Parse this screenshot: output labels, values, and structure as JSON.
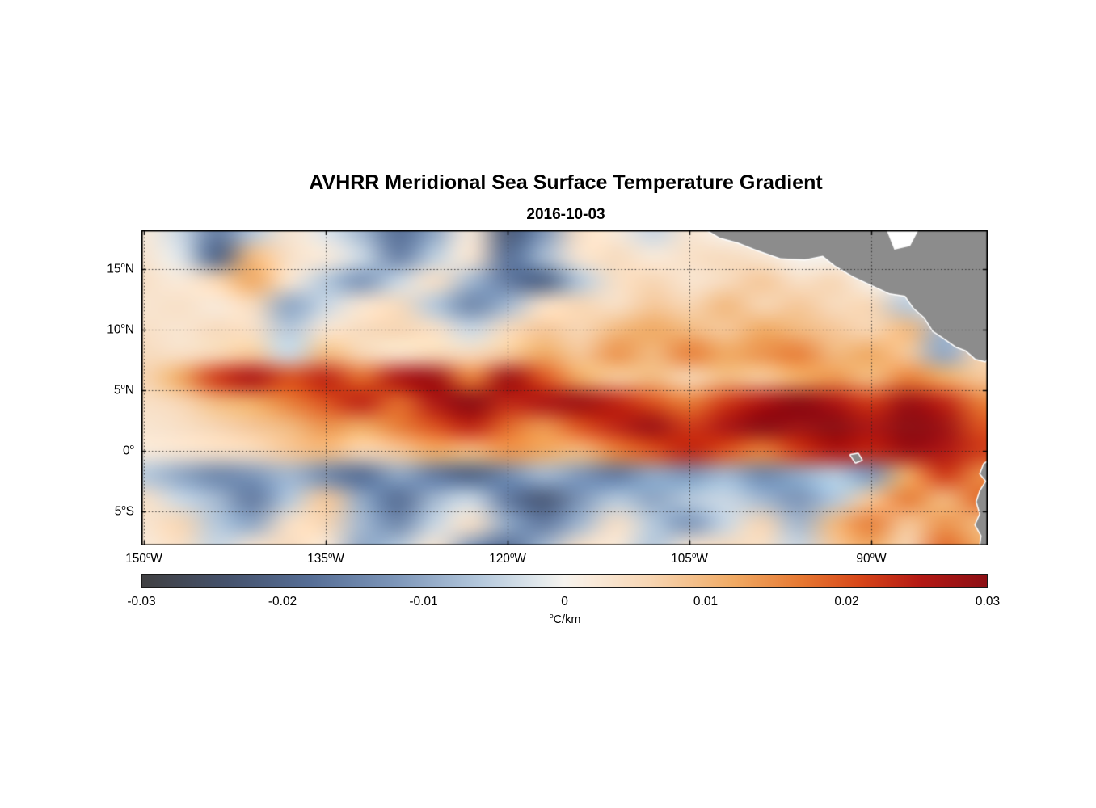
{
  "title": "AVHRR Meridional Sea Surface Temperature Gradient",
  "subtitle_date": "2016-10-03",
  "chart_data": {
    "type": "heatmap",
    "title": "AVHRR Meridional Sea Surface Temperature Gradient",
    "date": "2016-10-03",
    "units": "°C/km",
    "value_scale": 0.001,
    "extent": {
      "lon_min": -150.2,
      "lon_max": -80.4,
      "lat_min": -7.8,
      "lat_max": 18.2
    },
    "lons": [
      -150,
      -147,
      -144,
      -141,
      -138,
      -135,
      -132,
      -129,
      -126,
      -123,
      -120,
      -117,
      -114,
      -111,
      -108,
      -105,
      -102,
      -99,
      -96,
      -93,
      -90,
      -87,
      -84,
      -81
    ],
    "lats": [
      18,
      16,
      14,
      12,
      10,
      8,
      6,
      4,
      2,
      0,
      -2,
      -4,
      -6,
      -8
    ],
    "values": [
      [
        2,
        -4,
        -16,
        -6,
        3,
        -2,
        -8,
        -18,
        -10,
        2,
        -22,
        -12,
        4,
        2,
        -4,
        3,
        0,
        0,
        0,
        0,
        0,
        0,
        0,
        0
      ],
      [
        3,
        -2,
        -20,
        10,
        4,
        2,
        -4,
        -15,
        -5,
        3,
        -18,
        -8,
        3,
        5,
        2,
        4,
        5,
        3,
        0,
        0,
        0,
        0,
        0,
        0
      ],
      [
        4,
        2,
        6,
        12,
        3,
        -6,
        -12,
        -4,
        4,
        -8,
        -16,
        -20,
        -6,
        4,
        6,
        3,
        5,
        8,
        4,
        6,
        0,
        0,
        0,
        0
      ],
      [
        3,
        4,
        2,
        5,
        -10,
        -4,
        3,
        5,
        -6,
        -14,
        -8,
        4,
        6,
        4,
        8,
        6,
        10,
        6,
        8,
        5,
        6,
        -6,
        0,
        0
      ],
      [
        4,
        3,
        5,
        4,
        -6,
        3,
        5,
        6,
        4,
        -4,
        5,
        8,
        6,
        10,
        12,
        10,
        8,
        12,
        10,
        8,
        6,
        10,
        -8,
        4
      ],
      [
        5,
        4,
        6,
        8,
        -4,
        10,
        6,
        4,
        6,
        5,
        8,
        12,
        8,
        14,
        10,
        16,
        12,
        14,
        16,
        10,
        12,
        8,
        -10,
        6
      ],
      [
        6,
        12,
        22,
        26,
        20,
        24,
        18,
        26,
        28,
        16,
        28,
        20,
        12,
        8,
        10,
        6,
        10,
        8,
        12,
        14,
        10,
        16,
        12,
        8
      ],
      [
        4,
        6,
        10,
        12,
        16,
        20,
        24,
        18,
        26,
        30,
        24,
        26,
        28,
        24,
        20,
        16,
        22,
        26,
        30,
        26,
        22,
        28,
        24,
        16
      ],
      [
        3,
        4,
        6,
        8,
        10,
        14,
        12,
        16,
        20,
        24,
        18,
        14,
        20,
        24,
        28,
        22,
        26,
        30,
        28,
        30,
        26,
        30,
        28,
        20
      ],
      [
        2,
        3,
        4,
        5,
        8,
        10,
        6,
        8,
        12,
        10,
        14,
        12,
        10,
        16,
        20,
        24,
        20,
        16,
        22,
        26,
        24,
        28,
        26,
        22
      ],
      [
        -6,
        -10,
        -14,
        -12,
        -8,
        -14,
        -18,
        -10,
        -16,
        -20,
        -14,
        -8,
        -12,
        -16,
        -10,
        -12,
        -8,
        -14,
        -10,
        -6,
        -12,
        12,
        22,
        15
      ],
      [
        4,
        -4,
        -8,
        -16,
        -6,
        8,
        -10,
        -18,
        -8,
        -4,
        -16,
        -22,
        -12,
        -6,
        -10,
        -6,
        -4,
        -8,
        -12,
        -6,
        8,
        16,
        10,
        18
      ],
      [
        3,
        6,
        -6,
        -10,
        4,
        6,
        -8,
        -14,
        -4,
        4,
        -10,
        -16,
        -8,
        4,
        -6,
        -12,
        -4,
        6,
        -8,
        10,
        16,
        8,
        14,
        10
      ],
      [
        2,
        4,
        -4,
        3,
        5,
        2,
        -10,
        -6,
        3,
        -12,
        -18,
        -8,
        4,
        2,
        -6,
        3,
        5,
        4,
        -4,
        8,
        12,
        6,
        18,
        12
      ]
    ],
    "x_ticks": [
      {
        "lon": -150,
        "label": "150°W"
      },
      {
        "lon": -135,
        "label": "135°W"
      },
      {
        "lon": -120,
        "label": "120°W"
      },
      {
        "lon": -105,
        "label": "105°W"
      },
      {
        "lon": -90,
        "label": "90°W"
      }
    ],
    "y_ticks": [
      {
        "lat": 15,
        "label": "15°N"
      },
      {
        "lat": 10,
        "label": "10°N"
      },
      {
        "lat": 5,
        "label": "5°N"
      },
      {
        "lat": 0,
        "label": "0°"
      },
      {
        "lat": -5,
        "label": "5°S"
      }
    ],
    "grid_lons": [
      -150,
      -135,
      -120,
      -105,
      -90
    ],
    "grid_lats": [
      15,
      10,
      5,
      0,
      -5
    ],
    "colorbar": {
      "min": -0.03,
      "max": 0.03,
      "tick_values": [
        -0.03,
        -0.02,
        -0.01,
        0,
        0.01,
        0.02,
        0.03
      ],
      "tick_labels": [
        "-0.03",
        "-0.02",
        "-0.01",
        "0",
        "0.01",
        "0.02",
        "0.03"
      ],
      "label": "°C/km"
    },
    "colormap_stops": [
      [
        0.0,
        "#404042"
      ],
      [
        0.1,
        "#45526c"
      ],
      [
        0.2,
        "#566e96"
      ],
      [
        0.3,
        "#7d96b9"
      ],
      [
        0.4,
        "#b4c8dc"
      ],
      [
        0.47,
        "#e1e8ec"
      ],
      [
        0.5,
        "#f6f3ee"
      ],
      [
        0.53,
        "#f9ebdc"
      ],
      [
        0.6,
        "#f7d6b4"
      ],
      [
        0.7,
        "#f0aa64"
      ],
      [
        0.78,
        "#e67832"
      ],
      [
        0.85,
        "#d74619"
      ],
      [
        0.92,
        "#b41914"
      ],
      [
        1.0,
        "#8c0f14"
      ]
    ],
    "land": {
      "color": "#8c8c8c",
      "outline": "#ffffff",
      "polygons": [
        {
          "name": "central-america",
          "coords": [
            [
              -104.0,
              18.5
            ],
            [
              -102.5,
              17.6
            ],
            [
              -101.0,
              17.2
            ],
            [
              -99.5,
              16.6
            ],
            [
              -97.5,
              15.9
            ],
            [
              -95.5,
              15.8
            ],
            [
              -94.0,
              16.1
            ],
            [
              -93.0,
              15.3
            ],
            [
              -91.5,
              14.4
            ],
            [
              -90.0,
              13.7
            ],
            [
              -88.5,
              13.0
            ],
            [
              -87.2,
              12.8
            ],
            [
              -86.5,
              11.8
            ],
            [
              -85.6,
              11.0
            ],
            [
              -84.9,
              9.9
            ],
            [
              -84.0,
              9.3
            ],
            [
              -83.0,
              8.6
            ],
            [
              -82.2,
              8.3
            ],
            [
              -81.4,
              7.6
            ],
            [
              -80.6,
              7.4
            ],
            [
              -79.6,
              8.7
            ],
            [
              -78.5,
              9.2
            ],
            [
              -77.5,
              9.6
            ],
            [
              -77.5,
              19.0
            ],
            [
              -104.0,
              19.0
            ]
          ]
        },
        {
          "name": "south-america",
          "coords": [
            [
              -79.9,
              -0.55
            ],
            [
              -80.7,
              -1.1
            ],
            [
              -81.0,
              -1.9
            ],
            [
              -80.5,
              -2.5
            ],
            [
              -81.0,
              -3.3
            ],
            [
              -81.3,
              -4.2
            ],
            [
              -81.0,
              -5.2
            ],
            [
              -81.4,
              -6.1
            ],
            [
              -80.9,
              -7.0
            ],
            [
              -81.1,
              -8.5
            ],
            [
              -77.5,
              -8.5
            ],
            [
              -77.5,
              -0.2
            ]
          ]
        },
        {
          "name": "galapagos-islands",
          "coords": [
            [
              -91.7,
              -0.35
            ],
            [
              -91.1,
              -0.25
            ],
            [
              -90.8,
              -0.75
            ],
            [
              -91.3,
              -0.95
            ]
          ]
        }
      ],
      "water_inlets": [
        {
          "name": "gulf-of-honduras",
          "coords": [
            [
              -88.9,
              18.6
            ],
            [
              -88.1,
              16.6
            ],
            [
              -86.8,
              16.9
            ],
            [
              -85.9,
              18.6
            ]
          ]
        }
      ]
    }
  }
}
